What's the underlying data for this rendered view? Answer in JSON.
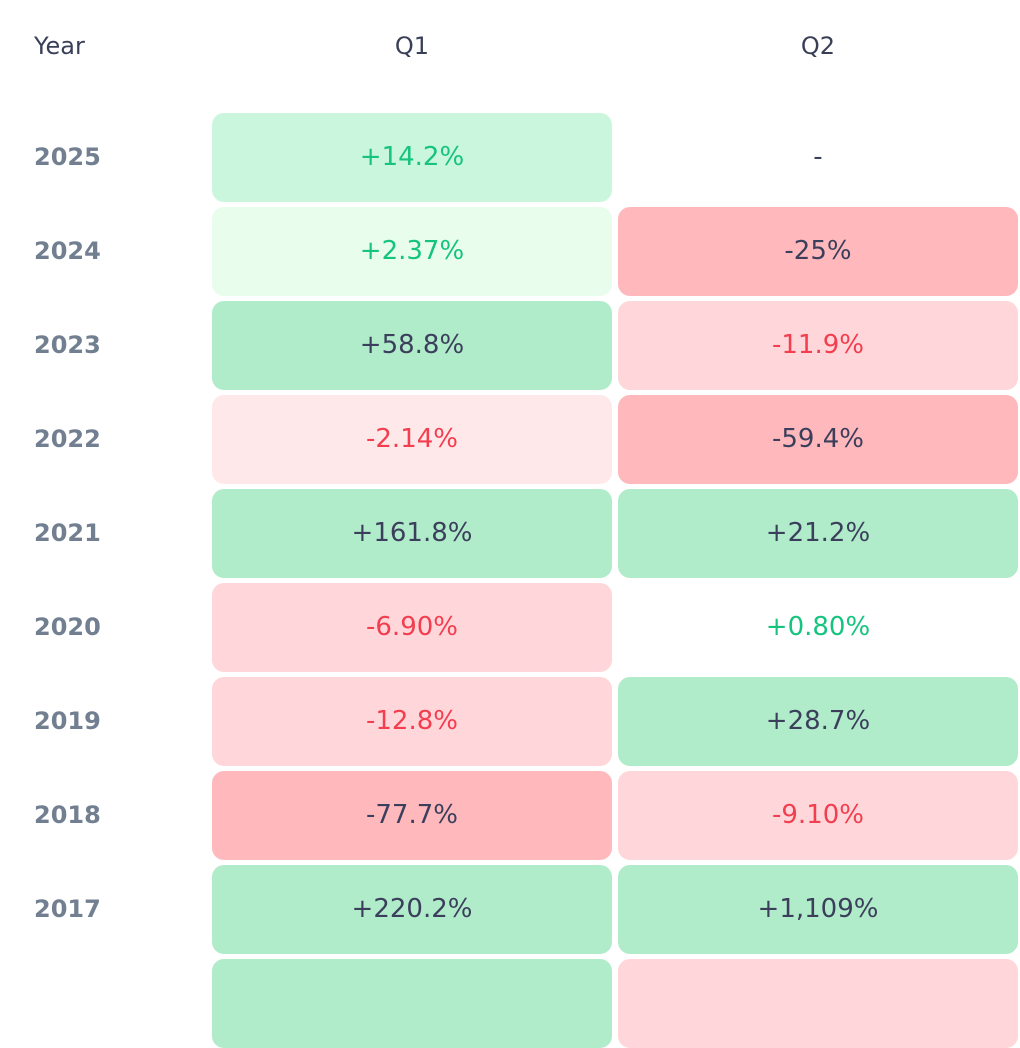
{
  "chart_data": {
    "type": "heatmap",
    "headers": {
      "year": "Year",
      "q1": "Q1",
      "q2": "Q2"
    },
    "colors": {
      "bg": {
        "g1": "#e8fdeb",
        "g2": "#c9f6dc",
        "g3": "#b0ebca",
        "r1": "#ffe8ea",
        "r2": "#ffd6da",
        "r3": "#ffb8bb",
        "none": "transparent"
      },
      "text": {
        "green": "#16c47f",
        "red": "#f23e4f",
        "dark": "#3b3f5c"
      }
    },
    "rows": [
      {
        "year": "2025",
        "q1": {
          "value": "+14.2%",
          "bg": "g2",
          "text": "green"
        },
        "q2": {
          "value": "-",
          "bg": "none",
          "text": "dark"
        }
      },
      {
        "year": "2024",
        "q1": {
          "value": "+2.37%",
          "bg": "g1",
          "text": "green"
        },
        "q2": {
          "value": "-25%",
          "bg": "r3",
          "text": "dark"
        }
      },
      {
        "year": "2023",
        "q1": {
          "value": "+58.8%",
          "bg": "g3",
          "text": "dark"
        },
        "q2": {
          "value": "-11.9%",
          "bg": "r2",
          "text": "red"
        }
      },
      {
        "year": "2022",
        "q1": {
          "value": "-2.14%",
          "bg": "r1",
          "text": "red"
        },
        "q2": {
          "value": "-59.4%",
          "bg": "r3",
          "text": "dark"
        }
      },
      {
        "year": "2021",
        "q1": {
          "value": "+161.8%",
          "bg": "g3",
          "text": "dark"
        },
        "q2": {
          "value": "+21.2%",
          "bg": "g3",
          "text": "dark"
        }
      },
      {
        "year": "2020",
        "q1": {
          "value": "-6.90%",
          "bg": "r2",
          "text": "red"
        },
        "q2": {
          "value": "+0.80%",
          "bg": "none",
          "text": "green"
        }
      },
      {
        "year": "2019",
        "q1": {
          "value": "-12.8%",
          "bg": "r2",
          "text": "red"
        },
        "q2": {
          "value": "+28.7%",
          "bg": "g3",
          "text": "dark"
        }
      },
      {
        "year": "2018",
        "q1": {
          "value": "-77.7%",
          "bg": "r3",
          "text": "dark"
        },
        "q2": {
          "value": "-9.10%",
          "bg": "r2",
          "text": "red"
        }
      },
      {
        "year": "2017",
        "q1": {
          "value": "+220.2%",
          "bg": "g3",
          "text": "dark"
        },
        "q2": {
          "value": "+1,109%",
          "bg": "g3",
          "text": "dark"
        }
      },
      {
        "year": "",
        "q1": {
          "value": "",
          "bg": "g3",
          "text": "dark"
        },
        "q2": {
          "value": "",
          "bg": "r2",
          "text": "red"
        }
      }
    ]
  }
}
